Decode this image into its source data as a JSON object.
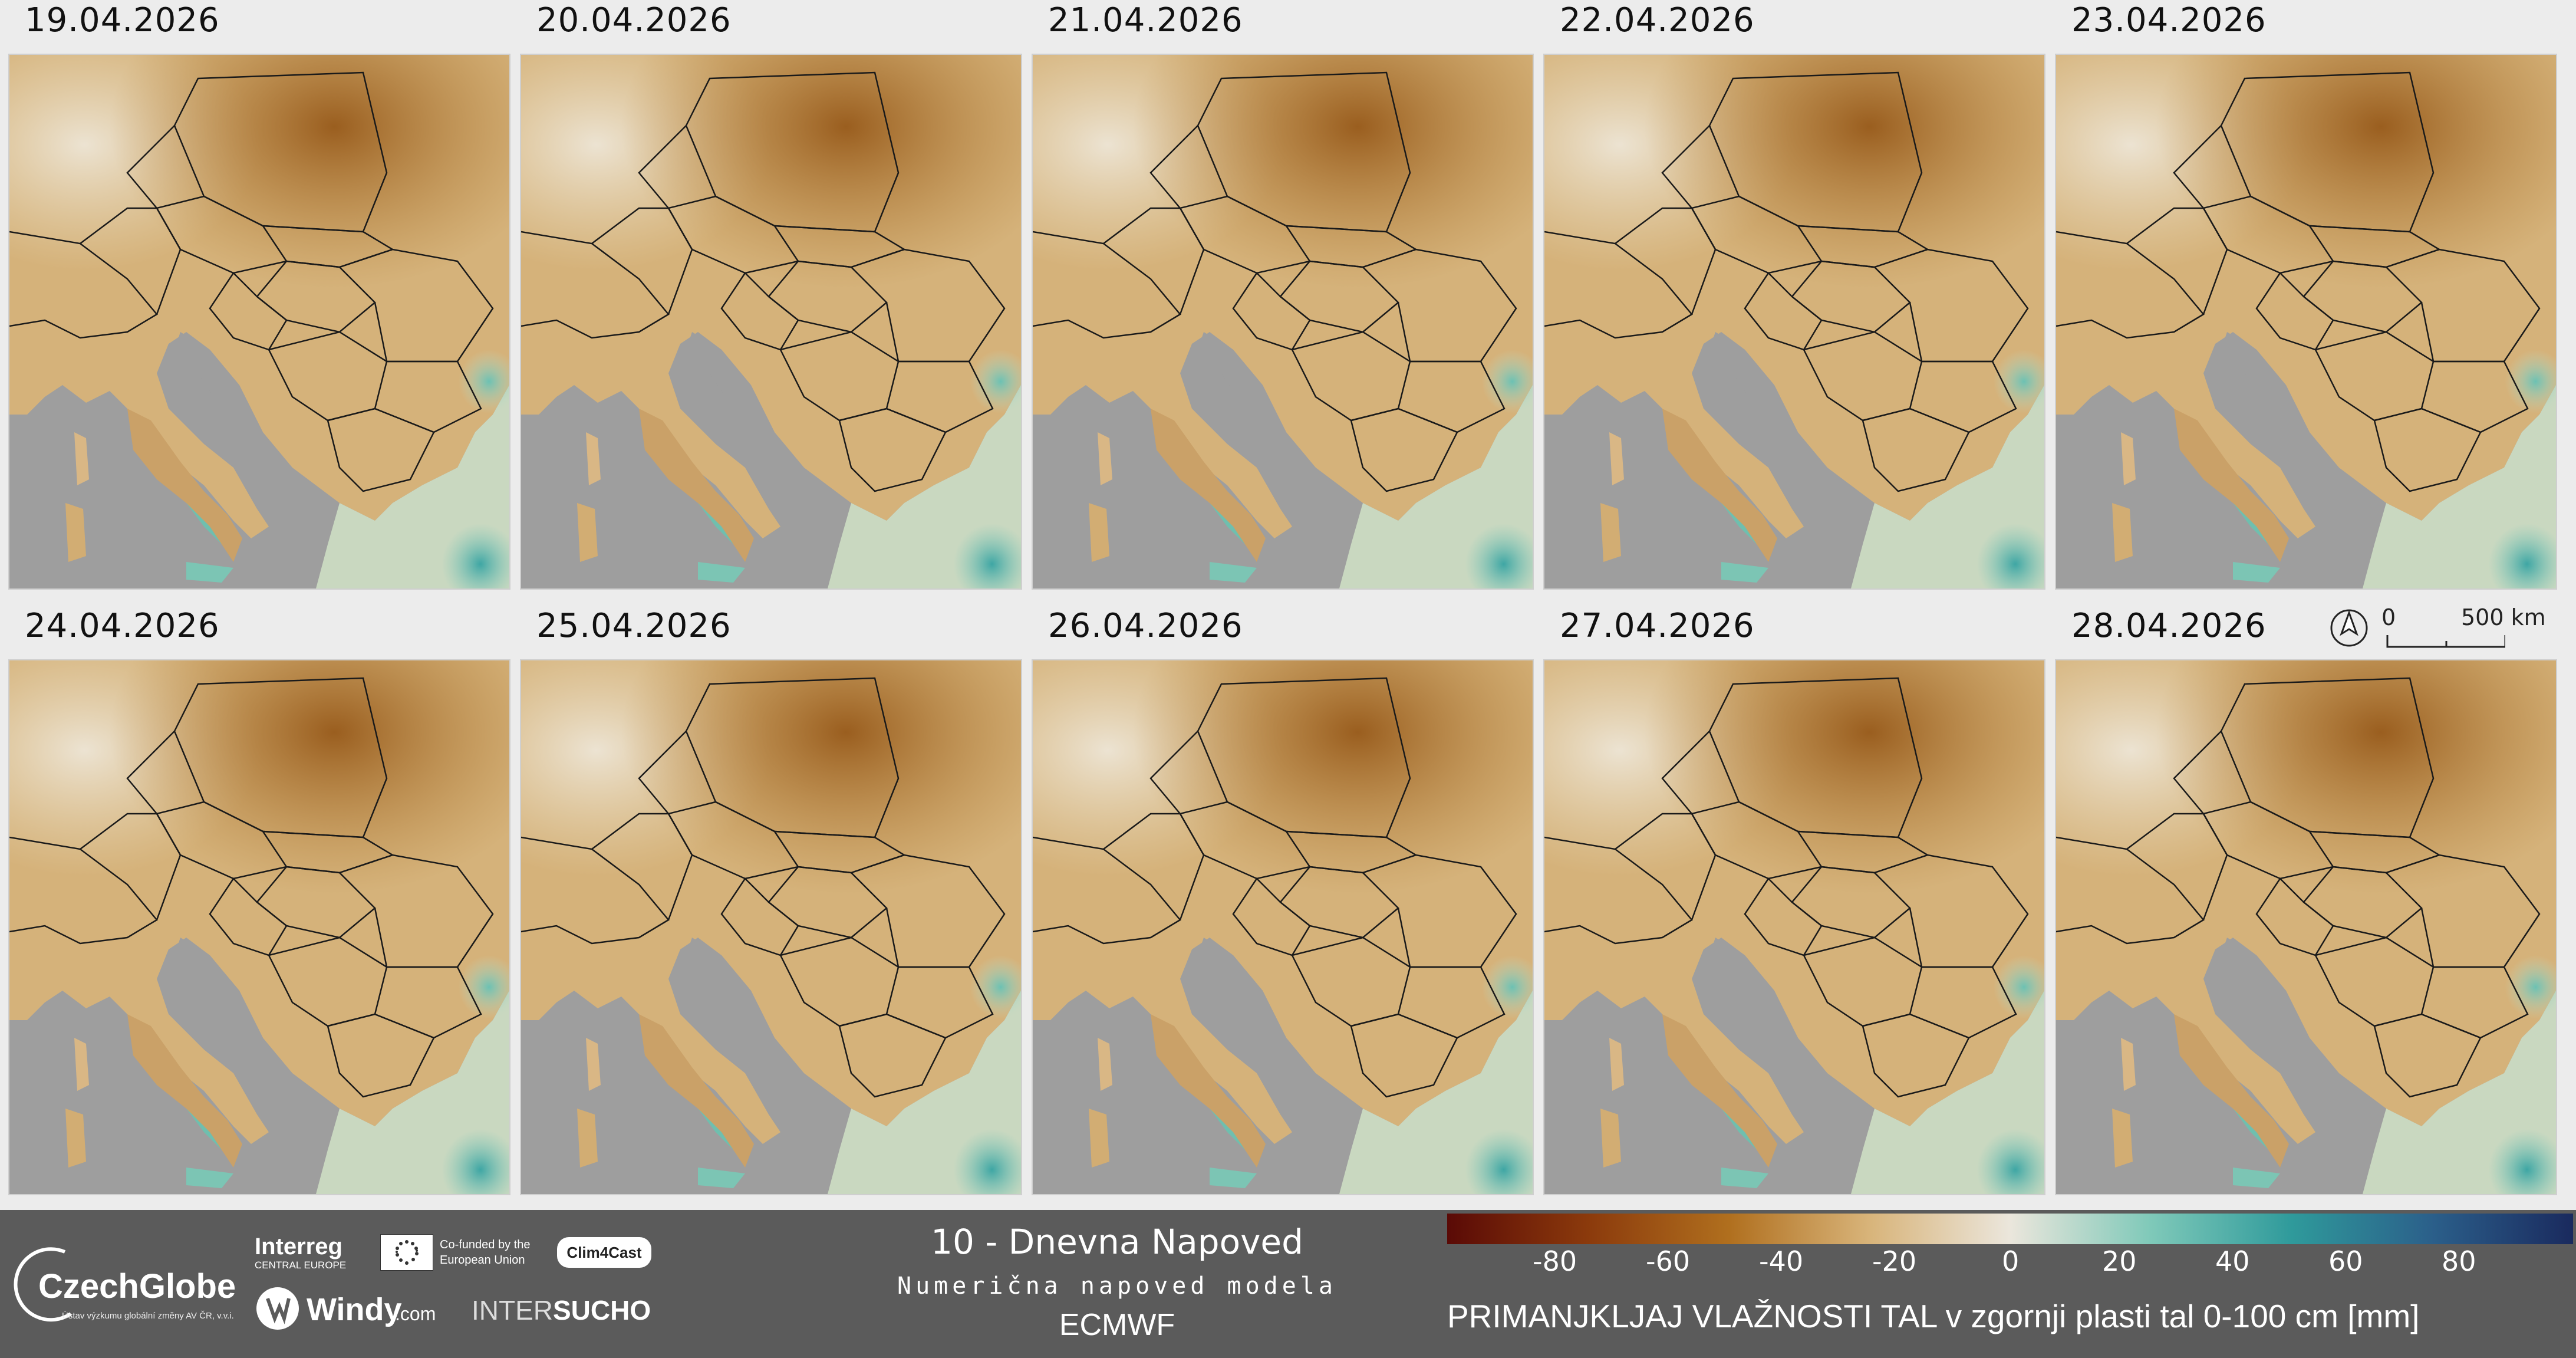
{
  "panels": [
    {
      "date": "19.04.2026"
    },
    {
      "date": "20.04.2026"
    },
    {
      "date": "21.04.2026"
    },
    {
      "date": "22.04.2026"
    },
    {
      "date": "23.04.2026"
    },
    {
      "date": "24.04.2026"
    },
    {
      "date": "25.04.2026"
    },
    {
      "date": "26.04.2026"
    },
    {
      "date": "27.04.2026"
    },
    {
      "date": "28.04.2026"
    }
  ],
  "scale": {
    "zero": "0",
    "distance": "500 km",
    "icon": "north-arrow-icon"
  },
  "footer": {
    "title": "10 - Dnevna Napoved",
    "subtitle": "Numerična napoved modela",
    "model": "ECMWF",
    "variable": "PRIMANJKLJAJ VLAŽNOSTI TAL v zgornji plasti tal 0-100 cm [mm]"
  },
  "legend": {
    "ticks": [
      "-80",
      "-60",
      "-40",
      "-20",
      "0",
      "20",
      "40",
      "60",
      "80"
    ],
    "colors": [
      "#5a0a06",
      "#8b3a0c",
      "#b06f1e",
      "#d8b47a",
      "#ebe6dc",
      "#7fc9b9",
      "#2f9a9b",
      "#2b5f8a",
      "#1a2a5e"
    ]
  },
  "logos": {
    "czechglobe": "CzechGlobe",
    "czechglobe_tagline": "Ústav výzkumu globální změny AV ČR, v.v.i.",
    "interreg": "Interreg",
    "interreg_sub": "CENTRAL EUROPE",
    "cofunded": "Co-funded by the European Union",
    "clim4cast": "Clim4Cast",
    "windy": "Windy",
    "windy_suffix": ".com",
    "intersucho_a": "INTER",
    "intersucho_b": "SUCHO"
  },
  "colors": {
    "sea": "#9e9e9e",
    "footer_bg": "#5b5b5b",
    "deficit_strong": "#8b4a12",
    "deficit_mid": "#b9843a",
    "neutral": "#ecdfc6",
    "wet": "#7fc9b9"
  }
}
